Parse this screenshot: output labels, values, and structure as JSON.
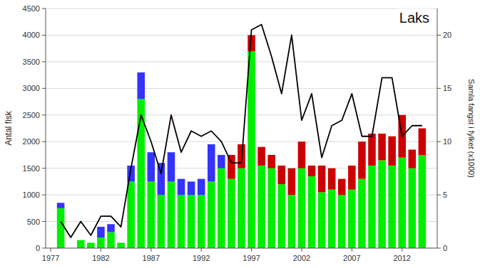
{
  "chart_data": {
    "type": "bar",
    "title": "Laks",
    "stacked": true,
    "grid": true,
    "ylabel": "Antal fisk",
    "y2label": "Samla fangst i fylket (x1000)",
    "x": [
      1978,
      1979,
      1980,
      1981,
      1982,
      1983,
      1984,
      1985,
      1986,
      1987,
      1988,
      1989,
      1990,
      1991,
      1992,
      1993,
      1994,
      1995,
      1996,
      1997,
      1998,
      1999,
      2000,
      2001,
      2002,
      2003,
      2004,
      2005,
      2006,
      2007,
      2008,
      2009,
      2010,
      2011,
      2012,
      2013,
      2014
    ],
    "xlim": [
      1976.5,
      2015.5
    ],
    "xticks": [
      1977,
      1982,
      1987,
      1992,
      1997,
      2002,
      2007,
      2012
    ],
    "ylim": [
      0,
      4500
    ],
    "yticks": [
      0,
      500,
      1000,
      1500,
      2000,
      2500,
      3000,
      3500,
      4000,
      4500
    ],
    "y2lim": [
      0,
      22.5
    ],
    "y2ticks": [
      0,
      5,
      10,
      15,
      20
    ],
    "series": [
      {
        "type": "bar",
        "color": "#00ee00",
        "values": [
          750,
          0,
          150,
          100,
          200,
          300,
          100,
          1250,
          2800,
          1250,
          1000,
          1250,
          1000,
          1000,
          1000,
          1250,
          1500,
          1300,
          1500,
          3700,
          1550,
          1500,
          1200,
          1000,
          1500,
          1350,
          1050,
          1100,
          1000,
          1100,
          1300,
          1550,
          1650,
          1550,
          1700,
          1500,
          1750
        ]
      },
      {
        "type": "bar",
        "color": "#3333ff",
        "values": [
          100,
          0,
          0,
          0,
          200,
          150,
          0,
          300,
          500,
          550,
          600,
          550,
          300,
          250,
          300,
          700,
          250,
          0,
          0,
          0,
          0,
          0,
          0,
          0,
          0,
          0,
          0,
          0,
          0,
          0,
          0,
          0,
          0,
          0,
          0,
          0,
          0
        ]
      },
      {
        "type": "bar",
        "color": "#cc0000",
        "values": [
          0,
          0,
          0,
          0,
          0,
          0,
          0,
          0,
          0,
          0,
          0,
          0,
          0,
          0,
          0,
          0,
          0,
          450,
          450,
          300,
          350,
          250,
          350,
          500,
          500,
          200,
          500,
          400,
          300,
          450,
          700,
          600,
          500,
          550,
          800,
          350,
          500
        ]
      },
      {
        "type": "line",
        "axis": "y2",
        "color": "#000000",
        "values": [
          2.5,
          1.0,
          2.5,
          1.2,
          3.0,
          3.0,
          2.0,
          7.5,
          12.5,
          10.0,
          7.0,
          12.5,
          9.0,
          11.0,
          10.5,
          11.0,
          10.0,
          8.0,
          8.0,
          20.5,
          21.0,
          18.0,
          14.5,
          20.0,
          12.0,
          14.5,
          8.5,
          11.5,
          12.0,
          14.5,
          10.5,
          10.5,
          16.0,
          16.0,
          10.5,
          11.5,
          11.5
        ]
      }
    ]
  }
}
